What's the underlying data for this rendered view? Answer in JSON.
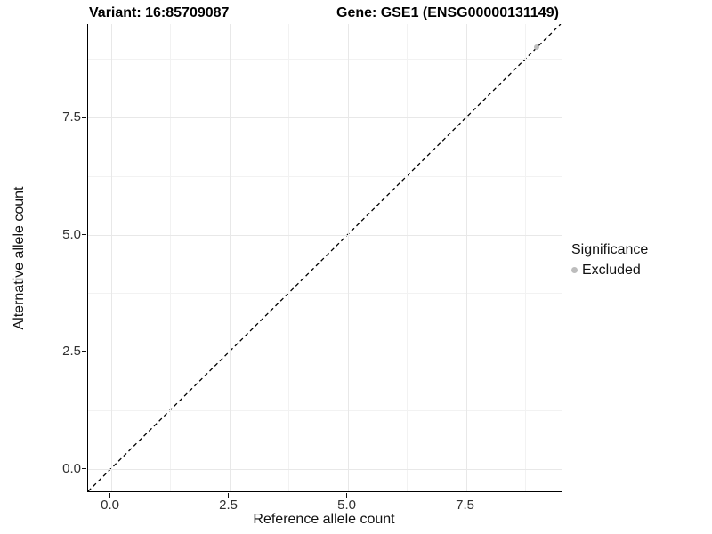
{
  "titles": {
    "variant": "Variant: 16:85709087",
    "gene": "Gene: GSE1 (ENSG00000131149)"
  },
  "axes": {
    "x_title": "Reference allele count",
    "y_title": "Alternative allele count"
  },
  "legend": {
    "title": "Significance",
    "items": [
      {
        "label": "Excluded",
        "color": "#bdbdbd",
        "marker": "circle-icon"
      }
    ]
  },
  "colors": {
    "point_excluded": "#bdbdbd",
    "grid_major": "#e8e8e8",
    "grid_minor": "#f2f2f2",
    "axis_line": "#000000",
    "identity_line": "#000000",
    "tick_label": "#303030"
  },
  "chart_data": {
    "type": "scatter",
    "title": "Variant: 16:85709087   Gene: GSE1 (ENSG00000131149)",
    "xlabel": "Reference allele count",
    "ylabel": "Alternative allele count",
    "xlim": [
      -0.48,
      9.52
    ],
    "ylim": [
      -0.48,
      9.5
    ],
    "x_ticks": [
      0.0,
      2.5,
      5.0,
      7.5
    ],
    "y_ticks": [
      0.0,
      2.5,
      5.0,
      7.5
    ],
    "x_tick_labels": [
      "0.0",
      "2.5",
      "5.0",
      "7.5"
    ],
    "y_tick_labels": [
      "0.0",
      "2.5",
      "5.0",
      "7.5"
    ],
    "x_minor_ticks": [
      1.25,
      3.75,
      6.25,
      8.75
    ],
    "y_minor_ticks": [
      1.25,
      3.75,
      6.25,
      8.75
    ],
    "grid": true,
    "legend_position": "right",
    "series": [
      {
        "name": "Excluded",
        "color": "#bdbdbd",
        "points": [
          {
            "x": 9.0,
            "y": 9.0
          }
        ]
      }
    ],
    "reference_line": {
      "kind": "identity",
      "intercept": 0,
      "slope": 1,
      "style": "dashed",
      "color": "#000000"
    }
  }
}
